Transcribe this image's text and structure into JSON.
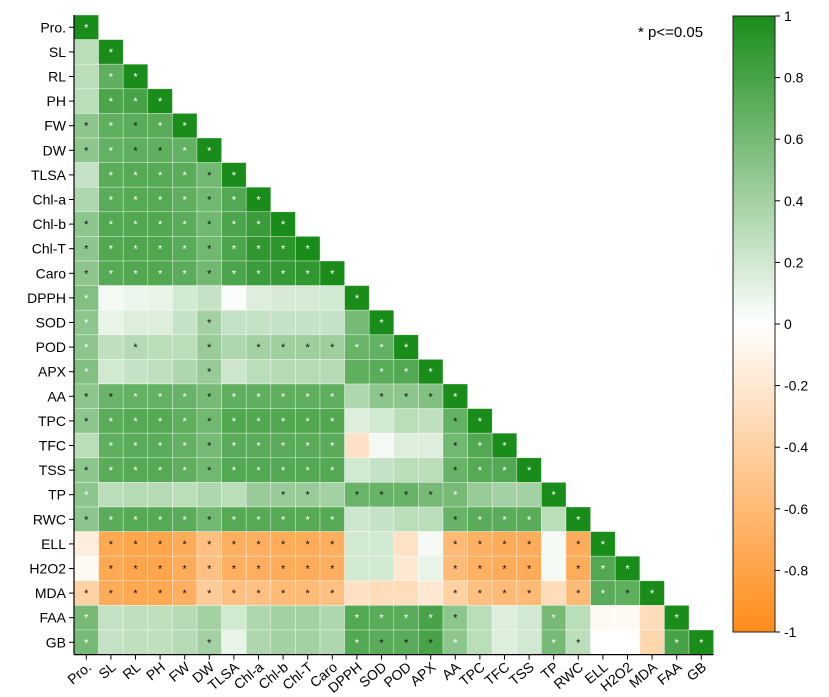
{
  "chart_data": {
    "type": "heatmap",
    "variables": [
      "Pro.",
      "SL",
      "RL",
      "PH",
      "FW",
      "DW",
      "TLSA",
      "Chl-a",
      "Chl-b",
      "Chl-T",
      "Caro",
      "DPPH",
      "SOD",
      "POD",
      "APX",
      "AA",
      "TPC",
      "TFC",
      "TSS",
      "TP",
      "RWC",
      "ELL",
      "H2O2",
      "MDA",
      "FAA",
      "GB"
    ],
    "triangle": "lower",
    "significance_note": "* p<=0.05",
    "colorbar": {
      "min": -1,
      "max": 1,
      "ticks": [
        "1",
        "0.8",
        "0.6",
        "0.4",
        "0.2",
        "0",
        "-0.2",
        "-0.4",
        "-0.6",
        "-0.8",
        "-1"
      ],
      "colors": {
        "positive": "#1a8c1a",
        "zero": "#ffffff",
        "negative": "#ff8c1a"
      }
    },
    "rows": [
      {
        "values": [
          1.0
        ],
        "stars": "W"
      },
      {
        "values": [
          0.3,
          1.0
        ],
        "stars": "-W"
      },
      {
        "values": [
          0.3,
          0.7,
          1.0
        ],
        "stars": "-WW"
      },
      {
        "values": [
          0.3,
          0.78,
          0.8,
          1.0
        ],
        "stars": "-WWW"
      },
      {
        "values": [
          0.5,
          0.7,
          0.72,
          0.72,
          1.0
        ],
        "stars": "KWKWW"
      },
      {
        "values": [
          0.5,
          0.68,
          0.7,
          0.7,
          0.68,
          1.0
        ],
        "stars": "KWKKWW"
      },
      {
        "values": [
          0.25,
          0.72,
          0.74,
          0.74,
          0.72,
          0.62,
          1.0
        ],
        "stars": "-WWWWKW"
      },
      {
        "values": [
          0.35,
          0.72,
          0.74,
          0.74,
          0.7,
          0.62,
          0.75,
          1.0
        ],
        "stars": "-WWWWKWW"
      },
      {
        "values": [
          0.5,
          0.75,
          0.76,
          0.76,
          0.72,
          0.62,
          0.78,
          0.86,
          1.0
        ],
        "stars": "KWWWWKWWW"
      },
      {
        "values": [
          0.5,
          0.76,
          0.77,
          0.77,
          0.73,
          0.62,
          0.78,
          0.9,
          0.92,
          1.0
        ],
        "stars": "KWWWWKWWWW"
      },
      {
        "values": [
          0.5,
          0.74,
          0.76,
          0.76,
          0.72,
          0.62,
          0.78,
          0.86,
          0.88,
          0.9,
          1.0
        ],
        "stars": "KWWWWKWWWWW"
      },
      {
        "values": [
          0.55,
          0.05,
          0.08,
          0.1,
          0.2,
          0.25,
          0.02,
          0.15,
          0.18,
          0.18,
          0.2,
          1.0
        ],
        "stars": "W----------W"
      },
      {
        "values": [
          0.5,
          0.1,
          0.15,
          0.15,
          0.25,
          0.4,
          0.25,
          0.25,
          0.25,
          0.25,
          0.25,
          0.6,
          1.0
        ],
        "stars": "W----K------WW"
      },
      {
        "values": [
          0.5,
          0.28,
          0.32,
          0.3,
          0.3,
          0.45,
          0.35,
          0.4,
          0.42,
          0.42,
          0.42,
          0.65,
          0.68,
          1.0
        ],
        "stars": "W-K--K-KKKKWWW"
      },
      {
        "values": [
          0.55,
          0.2,
          0.25,
          0.28,
          0.35,
          0.45,
          0.22,
          0.3,
          0.32,
          0.32,
          0.32,
          0.7,
          0.72,
          0.75,
          1.0
        ],
        "stars": "W----K------WWWW"
      },
      {
        "values": [
          0.5,
          0.65,
          0.68,
          0.68,
          0.66,
          0.6,
          0.7,
          0.7,
          0.7,
          0.7,
          0.7,
          0.35,
          0.5,
          0.5,
          0.55,
          1.0
        ],
        "stars": "KKWWWKWWWWW-KKKW"
      },
      {
        "values": [
          0.5,
          0.72,
          0.74,
          0.74,
          0.7,
          0.62,
          0.76,
          0.76,
          0.76,
          0.76,
          0.76,
          0.15,
          0.2,
          0.3,
          0.28,
          0.68,
          1.0
        ],
        "stars": "KWWWWKWWWWW----KW"
      },
      {
        "values": [
          0.3,
          0.7,
          0.72,
          0.72,
          0.68,
          0.6,
          0.72,
          0.72,
          0.72,
          0.72,
          0.72,
          -0.25,
          0.05,
          0.15,
          0.15,
          0.62,
          0.75,
          1.0
        ],
        "stars": "-WWWWKWWWWW----KWW"
      },
      {
        "values": [
          0.5,
          0.72,
          0.74,
          0.74,
          0.7,
          0.62,
          0.75,
          0.75,
          0.75,
          0.75,
          0.75,
          0.2,
          0.25,
          0.3,
          0.3,
          0.66,
          0.74,
          0.75,
          1.0
        ],
        "stars": "KWWWWKWWWWW----KWWW"
      },
      {
        "values": [
          0.5,
          0.3,
          0.32,
          0.32,
          0.3,
          0.35,
          0.3,
          0.45,
          0.45,
          0.45,
          0.4,
          0.65,
          0.66,
          0.66,
          0.6,
          0.6,
          0.45,
          0.4,
          0.4,
          1.0
        ],
        "stars": "W-------KK-KKKKW---W"
      },
      {
        "values": [
          0.5,
          0.72,
          0.74,
          0.74,
          0.72,
          0.62,
          0.74,
          0.74,
          0.74,
          0.74,
          0.74,
          0.22,
          0.25,
          0.3,
          0.3,
          0.66,
          0.72,
          0.72,
          0.72,
          0.3,
          1.0
        ],
        "stars": "KWWWWKWWWWW----KWWW-W"
      },
      {
        "values": [
          -0.15,
          -0.75,
          -0.78,
          -0.78,
          -0.72,
          -0.55,
          -0.7,
          -0.7,
          -0.72,
          -0.72,
          -0.7,
          0.2,
          0.2,
          -0.25,
          0.05,
          -0.6,
          -0.68,
          -0.72,
          -0.72,
          0.05,
          -0.72,
          1.0
        ],
        "stars": "-KKKKKKKKKK----KKKK-KW"
      },
      {
        "values": [
          -0.05,
          -0.75,
          -0.78,
          -0.78,
          -0.72,
          -0.55,
          -0.7,
          -0.7,
          -0.72,
          -0.72,
          -0.7,
          0.2,
          0.2,
          -0.2,
          0.1,
          -0.6,
          -0.68,
          -0.72,
          -0.72,
          0.05,
          -0.72,
          0.75,
          1.0
        ],
        "stars": "-KKKKKKKKKK----KKKK-KWW"
      },
      {
        "values": [
          -0.4,
          -0.72,
          -0.75,
          -0.75,
          -0.7,
          -0.45,
          -0.55,
          -0.55,
          -0.6,
          -0.6,
          -0.55,
          -0.25,
          -0.3,
          -0.3,
          -0.2,
          -0.4,
          -0.55,
          -0.6,
          -0.6,
          -0.3,
          -0.6,
          0.72,
          0.7,
          1.0
        ],
        "stars": "KKKKKKKKKKK----KKKK-KWKW"
      },
      {
        "values": [
          0.6,
          0.25,
          0.28,
          0.28,
          0.32,
          0.4,
          0.2,
          0.35,
          0.4,
          0.4,
          0.35,
          0.75,
          0.72,
          0.72,
          0.8,
          0.5,
          0.3,
          0.15,
          0.2,
          0.6,
          0.3,
          -0.05,
          -0.05,
          -0.3,
          1.0
        ],
        "stars": "W----------WWWWK---W----W"
      },
      {
        "values": [
          0.6,
          0.25,
          0.28,
          0.28,
          0.32,
          0.4,
          0.1,
          0.35,
          0.4,
          0.4,
          0.35,
          0.75,
          0.72,
          0.72,
          0.8,
          0.5,
          0.3,
          0.15,
          0.2,
          0.6,
          0.3,
          0.0,
          0.0,
          -0.35,
          0.8,
          1.0
        ],
        "stars": "W----K-----WKKKW---WK---WW"
      }
    ]
  }
}
